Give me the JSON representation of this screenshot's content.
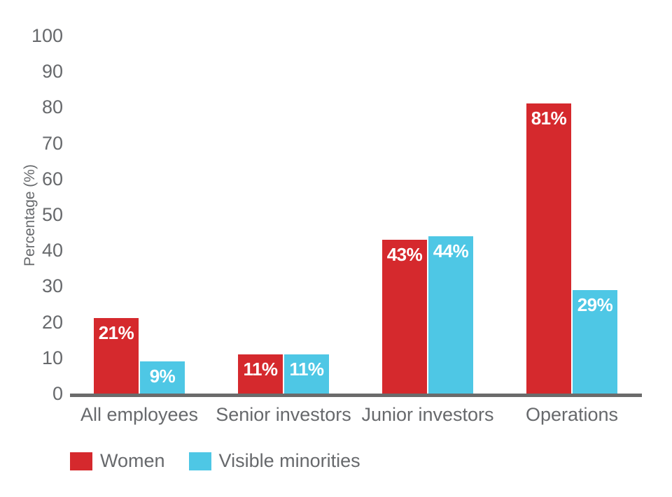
{
  "chart_data": {
    "type": "bar",
    "title": "",
    "xlabel": "",
    "ylabel": "Percentage (%)",
    "categories": [
      "All employees",
      "Senior investors",
      "Junior investors",
      "Operations"
    ],
    "series": [
      {
        "name": "Women",
        "color": "#d5292d",
        "values": [
          21,
          11,
          43,
          81
        ],
        "labels": [
          "21%",
          "11%",
          "43%",
          "81%"
        ]
      },
      {
        "name": "Visible minorities",
        "color": "#4ec7e5",
        "values": [
          9,
          11,
          44,
          29
        ],
        "labels": [
          "9%",
          "11%",
          "44%",
          "29%"
        ]
      }
    ],
    "ylim": [
      0,
      100
    ],
    "yticks": [
      0,
      10,
      20,
      30,
      40,
      50,
      60,
      70,
      80,
      90,
      100
    ],
    "grid": false,
    "legend_position": "bottom-left",
    "value_label_color": "#ffffff",
    "axis_text_color": "#67696c",
    "axis_line_color": "#6b6b6b"
  }
}
